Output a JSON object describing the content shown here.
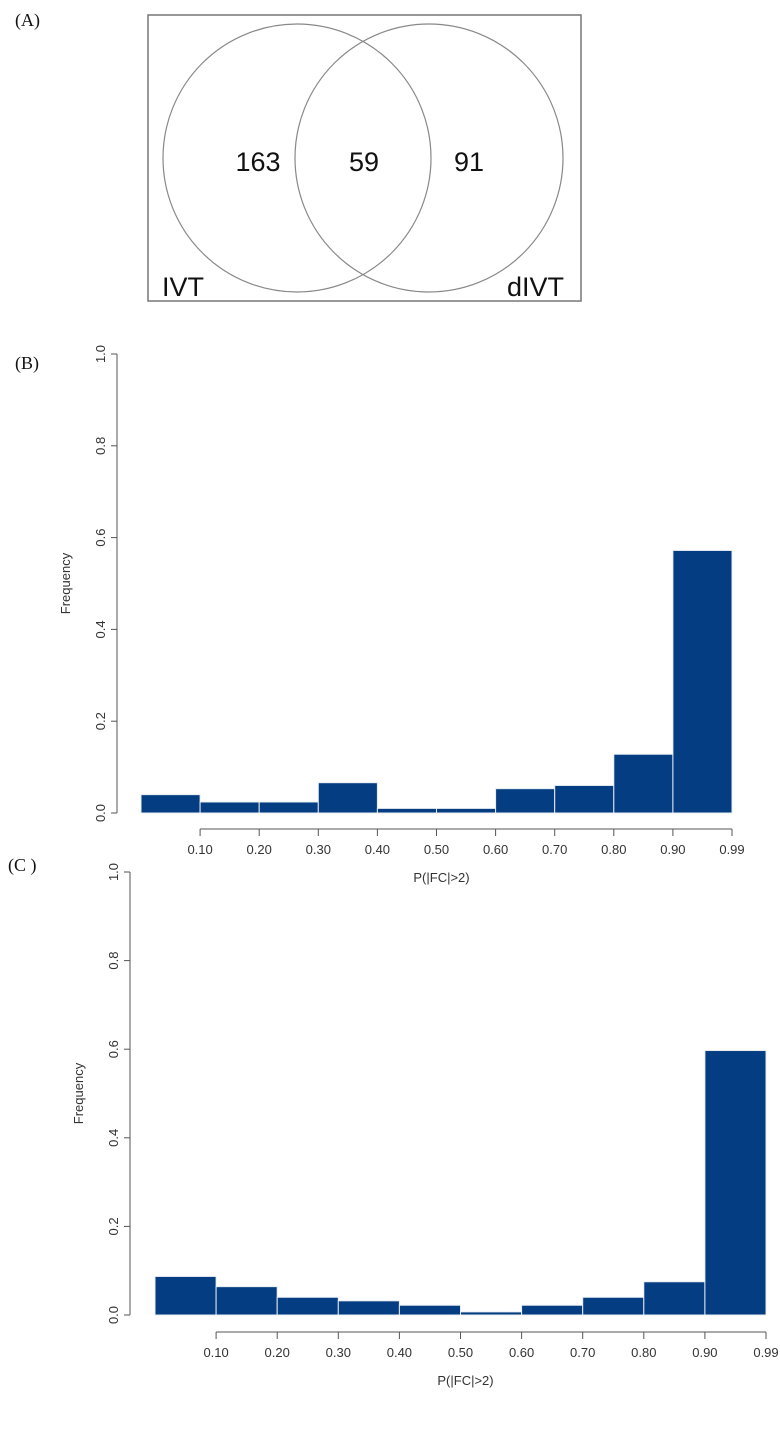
{
  "panels": {
    "a_label": "(A)",
    "b_label": "(B)",
    "c_label": "(C )"
  },
  "chart_data": [
    {
      "type": "venn",
      "sets": [
        "IVT",
        "dIVT"
      ],
      "values": {
        "only_IVT": "163",
        "intersection": "59",
        "only_dIVT": "91"
      }
    },
    {
      "type": "bar",
      "xlabel": "P(|FC|>2)",
      "ylabel": "Frequency",
      "ylim": [
        0,
        1.0
      ],
      "yticks": [
        "0.0",
        "0.2",
        "0.4",
        "0.6",
        "0.8",
        "1.0"
      ],
      "xticks": [
        "0.10",
        "0.20",
        "0.30",
        "0.40",
        "0.50",
        "0.60",
        "0.70",
        "0.80",
        "0.90",
        "0.99"
      ],
      "values": [
        0.04,
        0.024,
        0.024,
        0.066,
        0.01,
        0.01,
        0.053,
        0.06,
        0.128,
        0.572
      ],
      "bar_color": "#053d82"
    },
    {
      "type": "bar",
      "xlabel": "P(|FC|>2)",
      "ylabel": "Frequency",
      "ylim": [
        0,
        1.0
      ],
      "yticks": [
        "0.0",
        "0.2",
        "0.4",
        "0.6",
        "0.8",
        "1.0"
      ],
      "xticks": [
        "0.10",
        "0.20",
        "0.30",
        "0.40",
        "0.50",
        "0.60",
        "0.70",
        "0.80",
        "0.90",
        "0.99"
      ],
      "values": [
        0.087,
        0.064,
        0.04,
        0.032,
        0.022,
        0.007,
        0.022,
        0.04,
        0.075,
        0.597
      ],
      "bar_color": "#053d82"
    }
  ]
}
